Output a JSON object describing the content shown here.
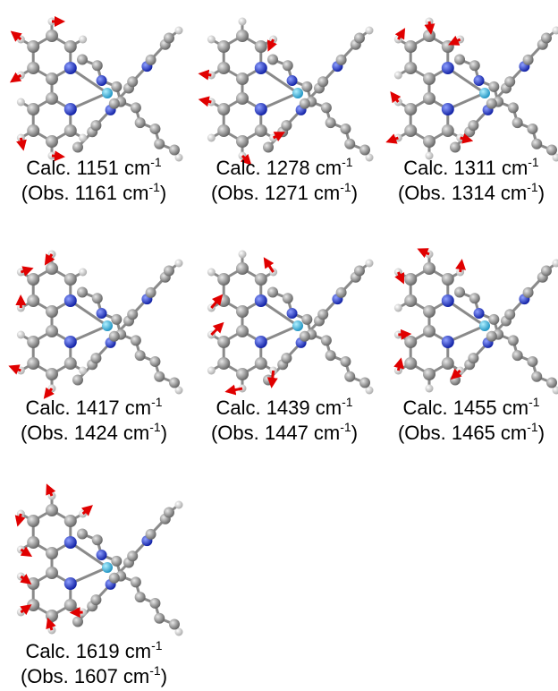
{
  "exponent": "-1",
  "close_paren": ")",
  "panels": [
    {
      "calc": "Calc. 1151 cm",
      "obs": "(Obs. 1161 cm"
    },
    {
      "calc": "Calc. 1278 cm",
      "obs": "(Obs. 1271 cm"
    },
    {
      "calc": "Calc. 1311 cm",
      "obs": "(Obs. 1314 cm"
    },
    {
      "calc": "Calc. 1417 cm",
      "obs": "(Obs. 1424 cm"
    },
    {
      "calc": "Calc. 1439 cm",
      "obs": "(Obs. 1447 cm"
    },
    {
      "calc": "Calc. 1455 cm",
      "obs": "(Obs. 1465 cm"
    },
    {
      "calc": "Calc. 1619 cm",
      "obs": "(Obs. 1607 cm"
    }
  ]
}
